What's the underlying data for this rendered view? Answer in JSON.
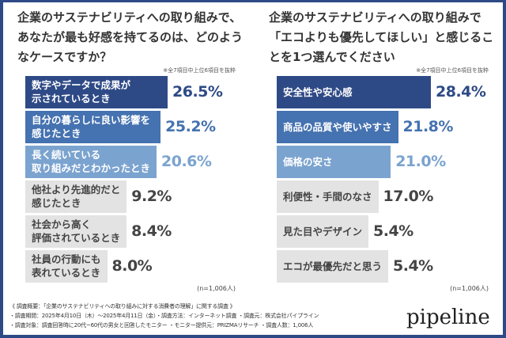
{
  "chart_data": [
    {
      "type": "bar",
      "orientation": "horizontal",
      "title": "企業のサステナビリティへの取り組みで、あなたが最も好感を持てるのは、どのようなケースですか？",
      "note": "※全7項目中上位6項目を抜粋",
      "sample": "(n=1,006人)",
      "categories": [
        "数字やデータで成果が\n示されているとき",
        "自分の暮らしに良い影響を\n感じたとき",
        "長く続いている\n取り組みだとわかったとき",
        "他社より先進的だと\n感じたとき",
        "社会から高く\n評価されているとき",
        "社員の行動にも\n表れているとき"
      ],
      "values": [
        26.5,
        25.2,
        20.6,
        9.2,
        8.4,
        8.0
      ],
      "labels": [
        "26.5%",
        "25.2%",
        "20.6%",
        "9.2%",
        "8.4%",
        "8.0%"
      ],
      "colors": [
        "#2e4a86",
        "#4572b0",
        "#7ba3cf",
        "#e3e3e3",
        "#e3e3e3",
        "#e3e3e3"
      ]
    },
    {
      "type": "bar",
      "orientation": "horizontal",
      "title": "企業のサステナビリティへの取り組みで「エコよりも優先してほしい」と感じることを1つ選んでください",
      "note": "※全7項目中上位6項目を抜粋",
      "sample": "(n=1,006人)",
      "categories": [
        "安全性や安心感",
        "商品の品質や使いやすさ",
        "価格の安さ",
        "利便性・手間のなさ",
        "見た目やデザイン",
        "エコが最優先だと思う"
      ],
      "values": [
        28.4,
        21.8,
        21.0,
        17.0,
        5.4,
        5.4
      ],
      "labels": [
        "28.4%",
        "21.8%",
        "21.0%",
        "17.0%",
        "5.4%",
        "5.4%"
      ],
      "colors": [
        "#2e4a86",
        "#4572b0",
        "#7ba3cf",
        "#e3e3e3",
        "#e3e3e3",
        "#e3e3e3"
      ]
    }
  ],
  "footer": {
    "line1": "《 調査概要：「企業のサステナビリティへの取り組みに対する消費者の理解」に関する調査 》",
    "line2": "・調査期間：2025年4月10日（木）～2025年4月11日（金）・調査方法：インターネット調査 ・調査元：株式会社パイプライン",
    "line3": "・調査対象：調査回答時に20代~60代の男女と回答したモニター ・モニター提供元：PRIZMAリサーチ ・調査人数：1,006人"
  },
  "logo": "pipeline"
}
